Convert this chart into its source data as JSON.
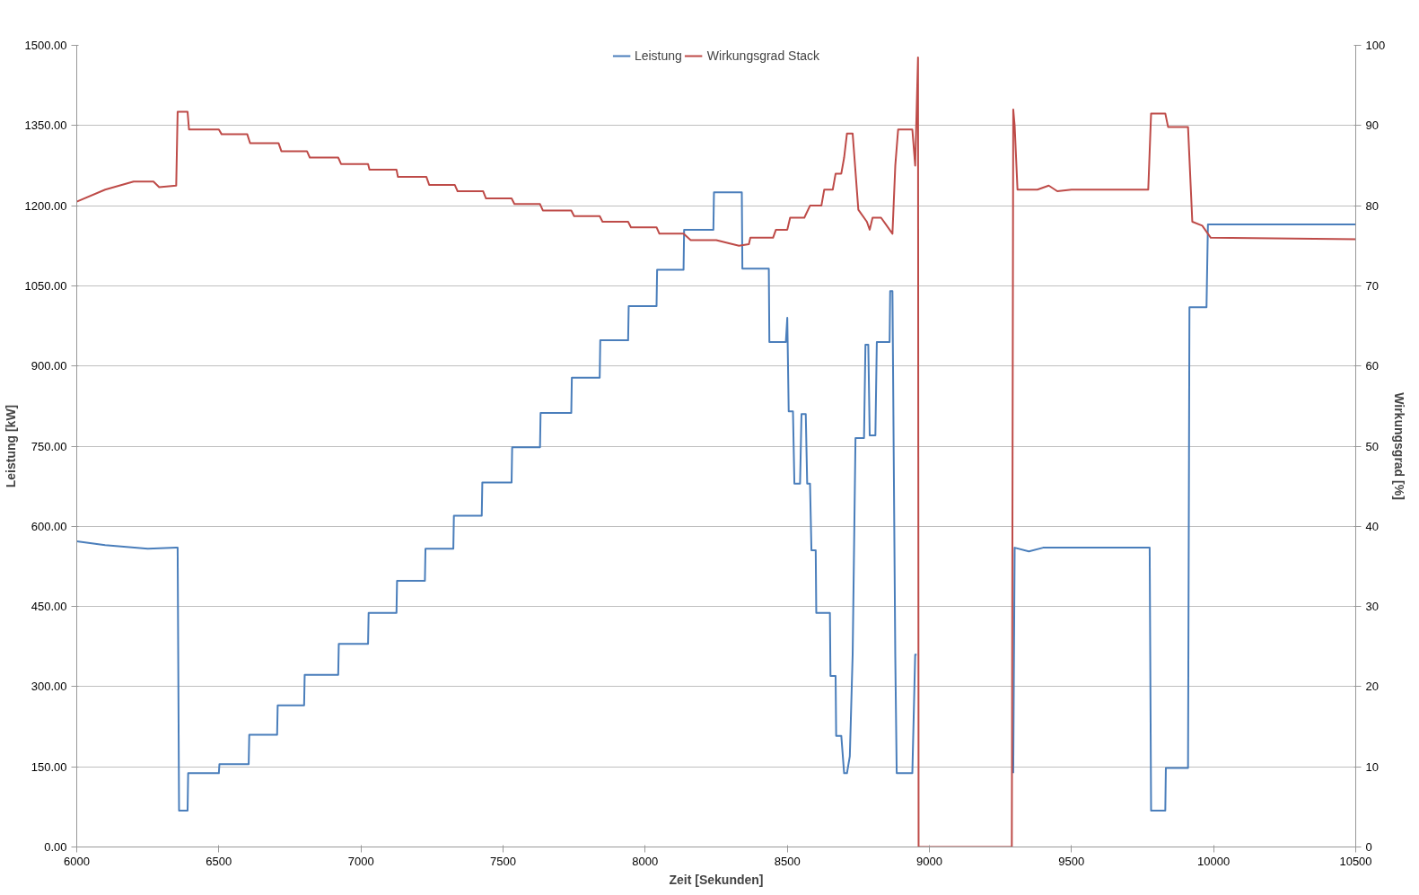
{
  "chart_data": {
    "type": "line",
    "xlabel": "Zeit [Sekunden]",
    "ylabel": "Leistung [kW]",
    "y2label": "Wirkungsgrad [%]",
    "xlim": [
      6000,
      10500
    ],
    "xticks": [
      6000,
      6500,
      7000,
      7500,
      8000,
      8500,
      9000,
      9500,
      10000,
      10500
    ],
    "ylim": [
      0,
      1500
    ],
    "yticks": [
      {
        "value": 0,
        "label": "0.00"
      },
      {
        "value": 150,
        "label": "150.00"
      },
      {
        "value": 300,
        "label": "300.00"
      },
      {
        "value": 450,
        "label": "450.00"
      },
      {
        "value": 600,
        "label": "600.00"
      },
      {
        "value": 750,
        "label": "750.00"
      },
      {
        "value": 900,
        "label": "900.00"
      },
      {
        "value": 1050,
        "label": "1050.00"
      },
      {
        "value": 1200,
        "label": "1200.00"
      },
      {
        "value": 1350,
        "label": "1350.00"
      },
      {
        "value": 1500,
        "label": "1500.00"
      }
    ],
    "y2lim": [
      0,
      100
    ],
    "y2ticks": [
      0,
      10,
      20,
      30,
      40,
      50,
      60,
      70,
      80,
      90,
      100
    ],
    "grid": "y",
    "legend": "top",
    "marker": "none",
    "line_style": "solid",
    "series": [
      {
        "name": "Leistung",
        "color": "#4a7ebb",
        "x": [
          6000,
          6100,
          6250,
          6350,
          6355,
          6360,
          6390,
          6392,
          6500,
          6502,
          6605,
          6607,
          6705,
          6707,
          6800,
          6802,
          6920,
          6922,
          7025,
          7027,
          7125,
          7127,
          7225,
          7227,
          7325,
          7327,
          7425,
          7427,
          7530,
          7532,
          7630,
          7632,
          7740,
          7742,
          7840,
          7842,
          7940,
          7942,
          8040,
          8042,
          8135,
          8137,
          8240,
          8242,
          8340,
          8342,
          8435,
          8437,
          8495,
          8500,
          8505,
          8520,
          8525,
          8545,
          8550,
          8565,
          8570,
          8580,
          8585,
          8600,
          8602,
          8650,
          8652,
          8670,
          8672,
          8690,
          8700,
          8710,
          8720,
          8730,
          8740,
          8770,
          8775,
          8785,
          8790,
          8810,
          8815,
          8860,
          8862,
          8870,
          8880,
          8885,
          8940,
          8950,
          8955,
          8960,
          9290,
          9295,
          9300,
          9350,
          9400,
          9775,
          9780,
          9830,
          9832,
          9910,
          9915,
          9975,
          9980,
          10500
        ],
        "values": [
          572,
          565,
          558,
          560,
          560,
          68,
          68,
          138,
          138,
          155,
          155,
          210,
          210,
          265,
          265,
          322,
          322,
          380,
          380,
          438,
          438,
          498,
          498,
          558,
          558,
          620,
          620,
          682,
          682,
          748,
          748,
          812,
          812,
          878,
          878,
          948,
          948,
          1012,
          1012,
          1080,
          1080,
          1155,
          1155,
          1225,
          1225,
          1082,
          1082,
          945,
          945,
          990,
          815,
          815,
          680,
          680,
          810,
          810,
          680,
          680,
          555,
          555,
          438,
          438,
          320,
          320,
          208,
          208,
          138,
          138,
          170,
          360,
          765,
          765,
          940,
          940,
          770,
          770,
          945,
          945,
          1040,
          1040,
          355,
          138,
          138,
          360,
          360,
          null,
          null,
          138,
          560,
          553,
          560,
          560,
          68,
          68,
          148,
          148,
          1010,
          1010,
          1165,
          1165
        ]
      },
      {
        "name": "Wirkungsgrad Stack",
        "color": "#be4b48",
        "axis": "y2",
        "x": [
          6000,
          6100,
          6200,
          6270,
          6290,
          6350,
          6355,
          6360,
          6390,
          6395,
          6500,
          6510,
          6600,
          6610,
          6710,
          6720,
          6810,
          6820,
          6920,
          6930,
          7025,
          7030,
          7125,
          7130,
          7230,
          7240,
          7330,
          7340,
          7430,
          7440,
          7530,
          7540,
          7630,
          7640,
          7740,
          7750,
          7840,
          7850,
          7940,
          7950,
          8040,
          8050,
          8135,
          8160,
          8250,
          8330,
          8365,
          8370,
          8450,
          8460,
          8500,
          8510,
          8560,
          8580,
          8620,
          8630,
          8660,
          8670,
          8690,
          8700,
          8710,
          8730,
          8750,
          8780,
          8790,
          8800,
          8830,
          8850,
          8870,
          8880,
          8890,
          8940,
          8950,
          8960,
          8962,
          9290,
          9295,
          9300,
          9310,
          9380,
          9420,
          9450,
          9500,
          9770,
          9780,
          9830,
          9840,
          9910,
          9925,
          9960,
          9990,
          10500
        ],
        "values": [
          80.5,
          82,
          83,
          83,
          82.3,
          82.5,
          91.7,
          91.7,
          91.7,
          89.5,
          89.5,
          88.9,
          88.9,
          87.8,
          87.8,
          86.8,
          86.8,
          86,
          86,
          85.2,
          85.2,
          84.5,
          84.5,
          83.6,
          83.6,
          82.6,
          82.6,
          81.8,
          81.8,
          80.9,
          80.9,
          80.2,
          80.2,
          79.4,
          79.4,
          78.7,
          78.7,
          78,
          78,
          77.3,
          77.3,
          76.5,
          76.5,
          75.7,
          75.7,
          75,
          75.2,
          76,
          76,
          77,
          77,
          78.5,
          78.5,
          80,
          80,
          82,
          82,
          84,
          84,
          86,
          89,
          89,
          79.5,
          78,
          77,
          78.5,
          78.5,
          77.5,
          76.5,
          85,
          89.5,
          89.5,
          85,
          98.5,
          0,
          0,
          92,
          90,
          82,
          82,
          82.5,
          81.8,
          82,
          82,
          91.5,
          91.5,
          89.8,
          89.8,
          78,
          77.5,
          76,
          75.8
        ]
      }
    ]
  }
}
